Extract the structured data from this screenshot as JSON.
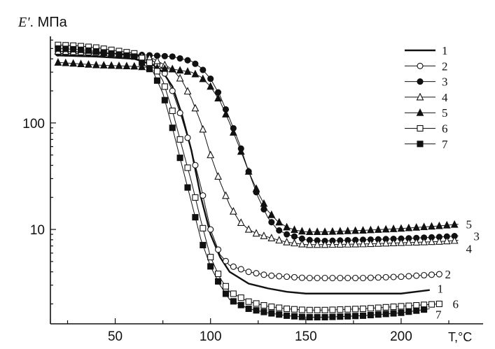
{
  "chart_data": {
    "type": "line",
    "title": "",
    "ylabel_italic": "E'",
    "ylabel_rest": ". МПа",
    "xlabel": "T,°C",
    "y_scale": "log",
    "xlim": [
      0,
      240
    ],
    "ylim": [
      1,
      800
    ],
    "x_ticks": [
      50,
      100,
      150,
      200
    ],
    "x_tick_labels": [
      "50",
      "100",
      "150",
      "200"
    ],
    "y_ticks": [
      10,
      100
    ],
    "y_tick_labels": [
      "10",
      "100"
    ],
    "grid": false,
    "legend_position": "top-right",
    "series": [
      {
        "name": "1",
        "marker": "none",
        "color": "#111111",
        "x": [
          20,
          40,
          60,
          70,
          75,
          80,
          85,
          90,
          95,
          100,
          105,
          110,
          120,
          130,
          140,
          150,
          160,
          180,
          200,
          215
        ],
        "y": [
          430,
          420,
          400,
          350,
          300,
          220,
          120,
          55,
          20,
          9,
          5.5,
          4,
          3.1,
          2.8,
          2.6,
          2.5,
          2.5,
          2.5,
          2.5,
          2.7
        ]
      },
      {
        "name": "2",
        "marker": "open-circle",
        "color": "#111111",
        "x": [
          20,
          40,
          60,
          70,
          75,
          80,
          85,
          90,
          95,
          100,
          105,
          110,
          120,
          130,
          140,
          150,
          160,
          180,
          200,
          220
        ],
        "y": [
          470,
          460,
          430,
          380,
          320,
          200,
          110,
          55,
          25,
          10,
          5.8,
          4.6,
          4,
          3.7,
          3.6,
          3.5,
          3.5,
          3.5,
          3.6,
          3.8
        ]
      },
      {
        "name": "3",
        "marker": "filled-circle",
        "color": "#111111",
        "x": [
          20,
          40,
          60,
          70,
          80,
          90,
          95,
          100,
          105,
          110,
          115,
          120,
          125,
          130,
          135,
          140,
          145,
          150,
          160,
          180,
          200,
          220,
          230
        ],
        "y": [
          450,
          450,
          440,
          430,
          420,
          380,
          330,
          260,
          180,
          110,
          65,
          35,
          20,
          13,
          10,
          9,
          8.5,
          8,
          7.8,
          8,
          8.2,
          8.5,
          8.7
        ]
      },
      {
        "name": "4",
        "marker": "open-triangle",
        "color": "#111111",
        "x": [
          20,
          40,
          60,
          70,
          80,
          85,
          90,
          95,
          100,
          105,
          110,
          115,
          120,
          125,
          130,
          135,
          140,
          145,
          150,
          160,
          180,
          200,
          220,
          230
        ],
        "y": [
          470,
          460,
          440,
          400,
          320,
          250,
          170,
          100,
          50,
          28,
          17,
          12,
          10,
          9,
          8.5,
          8,
          7.6,
          7.4,
          7.2,
          7.2,
          7.3,
          7.5,
          7.7,
          7.9
        ]
      },
      {
        "name": "5",
        "marker": "filled-triangle",
        "color": "#111111",
        "x": [
          20,
          40,
          60,
          70,
          80,
          90,
          95,
          100,
          105,
          110,
          115,
          120,
          125,
          130,
          135,
          140,
          145,
          150,
          160,
          180,
          200,
          220,
          230
        ],
        "y": [
          370,
          350,
          340,
          330,
          320,
          300,
          270,
          220,
          160,
          100,
          60,
          35,
          22,
          15,
          12,
          10.5,
          9.8,
          9.5,
          9.5,
          9.8,
          10.2,
          10.8,
          11.2
        ]
      },
      {
        "name": "6",
        "marker": "open-square",
        "color": "#111111",
        "x": [
          20,
          30,
          40,
          60,
          70,
          75,
          80,
          85,
          90,
          95,
          100,
          105,
          110,
          120,
          130,
          140,
          150,
          160,
          180,
          200,
          220
        ],
        "y": [
          540,
          530,
          510,
          450,
          350,
          250,
          130,
          60,
          28,
          12,
          5.5,
          3.5,
          2.6,
          2.1,
          1.9,
          1.8,
          1.75,
          1.75,
          1.8,
          1.9,
          2
        ]
      },
      {
        "name": "7",
        "marker": "filled-square",
        "color": "#111111",
        "x": [
          20,
          30,
          40,
          60,
          70,
          75,
          80,
          85,
          90,
          95,
          100,
          105,
          110,
          120,
          130,
          140,
          150,
          160,
          180,
          200,
          215
        ],
        "y": [
          500,
          490,
          470,
          420,
          300,
          190,
          90,
          40,
          18,
          8,
          4.5,
          3,
          2.2,
          1.8,
          1.65,
          1.55,
          1.5,
          1.5,
          1.55,
          1.65,
          1.8
        ]
      }
    ],
    "end_labels": [
      "5",
      "3",
      "4",
      "2",
      "1",
      "6",
      "7"
    ]
  }
}
